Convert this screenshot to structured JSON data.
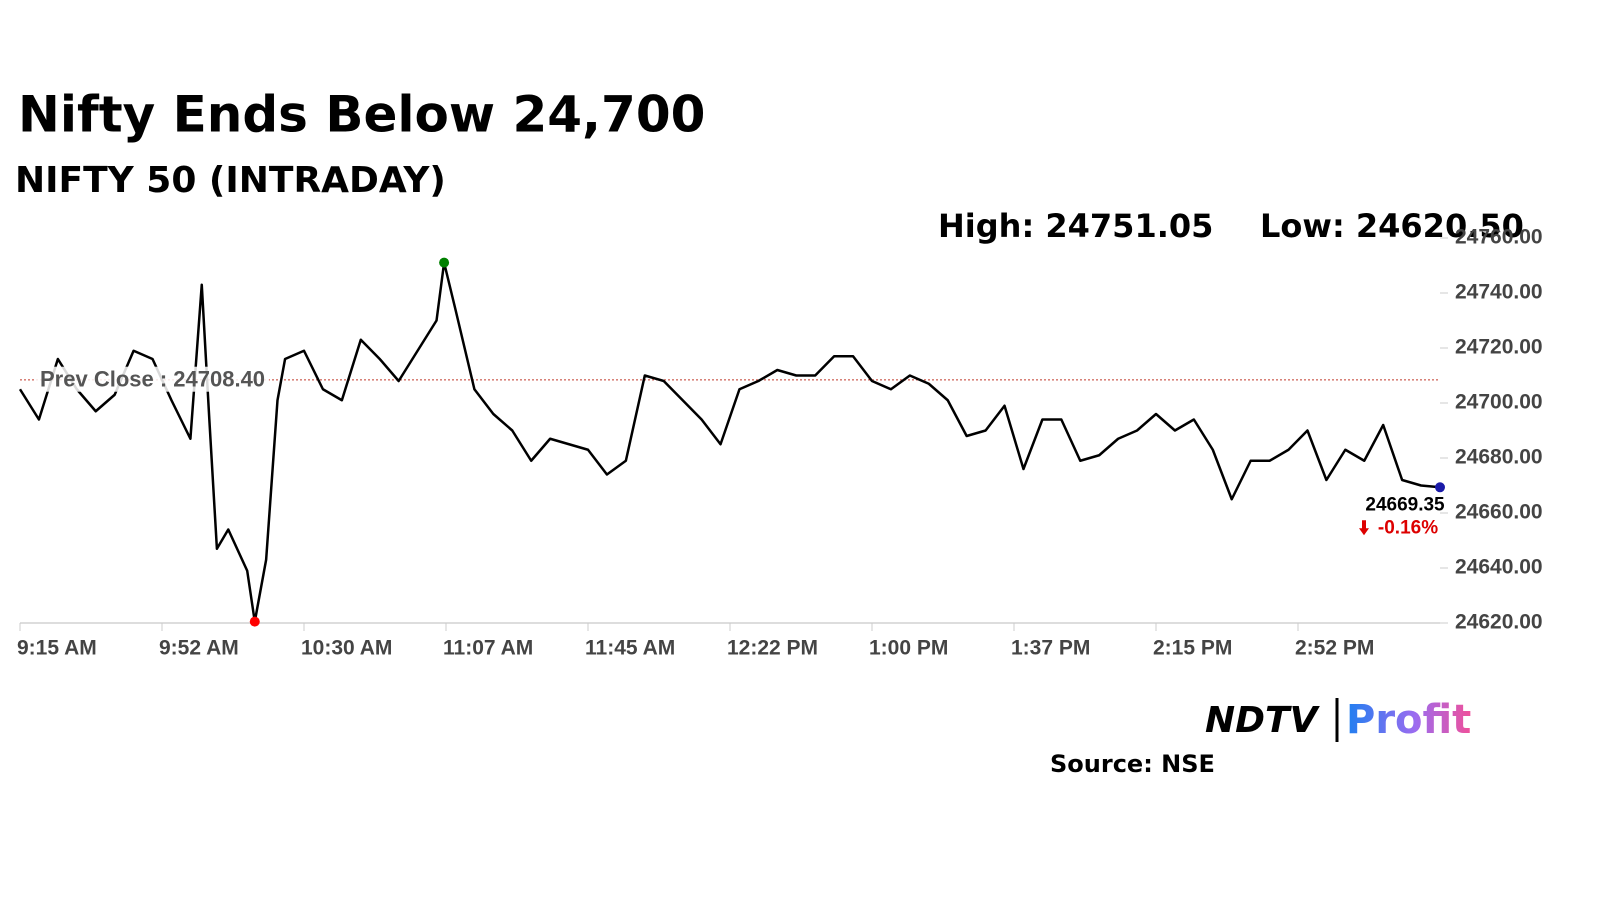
{
  "chart_data": {
    "type": "line",
    "title": "Nifty Ends Below 24,700",
    "subtitle": "NIFTY 50 (INTRADAY)",
    "high": {
      "x": 112,
      "value": 24751.05,
      "label": "High: 24751.05"
    },
    "low": {
      "x": 62,
      "value": 24620.5,
      "label": "Low: 24620.50"
    },
    "prev_close": {
      "value": 24708.4,
      "label": "Prev Close : 24708.40"
    },
    "last": {
      "x": 375,
      "value": 24669.35
    },
    "change": {
      "value": -0.16,
      "label": "-0.16%"
    },
    "series": [
      {
        "name": "NIFTY 50",
        "color": "#000000",
        "x": [
          0,
          5,
          10,
          15,
          20,
          25,
          30,
          35,
          40,
          45,
          48,
          50,
          52,
          55,
          60,
          62,
          65,
          68,
          70,
          75,
          80,
          85,
          90,
          95,
          100,
          105,
          110,
          112,
          115,
          120,
          125,
          130,
          135,
          140,
          145,
          150,
          155,
          160,
          165,
          170,
          175,
          180,
          185,
          190,
          195,
          200,
          205,
          210,
          215,
          220,
          225,
          230,
          235,
          240,
          245,
          250,
          255,
          260,
          265,
          270,
          275,
          280,
          285,
          290,
          295,
          300,
          305,
          310,
          315,
          320,
          325,
          330,
          335,
          340,
          345,
          350,
          355,
          360,
          365,
          370,
          375
        ],
        "values": [
          24705,
          24694,
          24716,
          24705,
          24697,
          24703,
          24719,
          24716,
          24701,
          24687,
          24743,
          24694,
          24647,
          24654,
          24639,
          24620.5,
          24643,
          24701,
          24716,
          24719,
          24705,
          24701,
          24723,
          24716,
          24708,
          24719,
          24730,
          24751.05,
          24734,
          24705,
          24696,
          24690,
          24679,
          24687,
          24685,
          24683,
          24674,
          24679,
          24710,
          24708,
          24701,
          24694,
          24685,
          24705,
          24708,
          24712,
          24710,
          24710,
          24717,
          24717,
          24708,
          24705,
          24710,
          24707,
          24701,
          24688,
          24690,
          24699,
          24676,
          24694,
          24694,
          24679,
          24681,
          24687,
          24690,
          24696,
          24690,
          24694,
          24683,
          24665,
          24679,
          24679,
          24683,
          24690,
          24672,
          24683,
          24679,
          24692,
          24672,
          24670,
          24669.35
        ]
      }
    ],
    "xlim": [
      0,
      375
    ],
    "xticks": [
      {
        "value": 0,
        "label": "9:15 AM"
      },
      {
        "value": 37.5,
        "label": "9:52 AM"
      },
      {
        "value": 75,
        "label": "10:30 AM"
      },
      {
        "value": 112.5,
        "label": "11:07 AM"
      },
      {
        "value": 150,
        "label": "11:45 AM"
      },
      {
        "value": 187.5,
        "label": "12:22 PM"
      },
      {
        "value": 225,
        "label": "1:00 PM"
      },
      {
        "value": 262.5,
        "label": "1:37 PM"
      },
      {
        "value": 300,
        "label": "2:15 PM"
      },
      {
        "value": 337.5,
        "label": "2:52 PM"
      }
    ],
    "ylim": [
      24620,
      24760
    ],
    "yticks": [
      {
        "value": 24620,
        "label": "24620.00"
      },
      {
        "value": 24640,
        "label": "24640.00"
      },
      {
        "value": 24660,
        "label": "24660.00"
      },
      {
        "value": 24680,
        "label": "24680.00"
      },
      {
        "value": 24700,
        "label": "24700.00"
      },
      {
        "value": 24720,
        "label": "24720.00"
      },
      {
        "value": 24740,
        "label": "24740.00"
      },
      {
        "value": 24760,
        "label": "24760.00"
      }
    ],
    "brand": {
      "name": "NDTV",
      "product": "Profit"
    },
    "source": "Source: NSE"
  }
}
